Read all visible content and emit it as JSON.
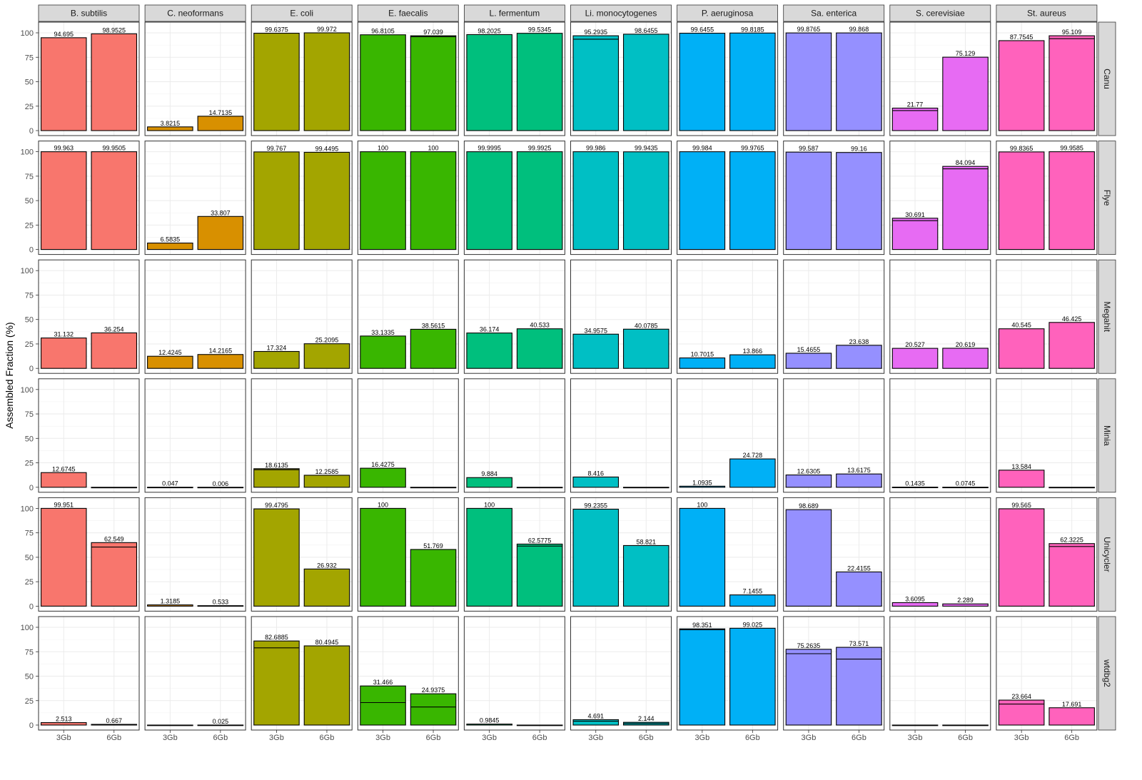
{
  "chart_data": {
    "type": "bar",
    "ylabel": "Assembled Fraction (%)",
    "xlabel": "",
    "ylim": [
      0,
      100
    ],
    "y_ticks": [
      0,
      25,
      50,
      75,
      100
    ],
    "categories": [
      "3Gb",
      "6Gb"
    ],
    "grid": true,
    "species": [
      "B. subtilis",
      "C. neoformans",
      "E. coli",
      "E. faecalis",
      "L. fermentum",
      "Li. monocytogenes",
      "P. aeruginosa",
      "Sa. enterica",
      "S. cerevisiae",
      "St. aureus"
    ],
    "assemblers": [
      "Canu",
      "Flye",
      "Megahit",
      "Minia",
      "Unicycler",
      "wtdbg2"
    ],
    "colors": {
      "B. subtilis": "#F8766D",
      "C. neoformans": "#D89000",
      "E. coli": "#A3A500",
      "E. faecalis": "#39B600",
      "L. fermentum": "#00BF7D",
      "Li. monocytogenes": "#00BFC4",
      "P. aeruginosa": "#00B0F6",
      "Sa. enterica": "#9590FF",
      "S. cerevisiae": "#E76BF3",
      "St. aureus": "#FF62BC"
    },
    "values": {
      "Canu": [
        {
          "labels": [
            "94.695",
            "98.9525"
          ],
          "bars": [
            95,
            99
          ],
          "lines": [
            null,
            null
          ]
        },
        {
          "labels": [
            "3.8215",
            "14.7135"
          ],
          "bars": [
            3.8,
            14.7
          ],
          "lines": [
            null,
            null
          ]
        },
        {
          "labels": [
            "99.6375",
            "99.972"
          ],
          "bars": [
            99.6,
            100
          ],
          "lines": [
            null,
            null
          ]
        },
        {
          "labels": [
            "96.8105",
            "97.039"
          ],
          "bars": [
            98,
            97
          ],
          "lines": [
            null,
            96
          ]
        },
        {
          "labels": [
            "98.2025",
            "99.5345"
          ],
          "bars": [
            98.2,
            99.5
          ],
          "lines": [
            null,
            null
          ]
        },
        {
          "labels": [
            "95.2935",
            "98.6455"
          ],
          "bars": [
            97,
            98.6
          ],
          "lines": [
            93.5,
            null
          ]
        },
        {
          "labels": [
            "99.6455",
            "99.8185"
          ],
          "bars": [
            99.6,
            99.8
          ],
          "lines": [
            null,
            null
          ]
        },
        {
          "labels": [
            "99.8765",
            "99.868"
          ],
          "bars": [
            99.9,
            99.9
          ],
          "lines": [
            null,
            null
          ]
        },
        {
          "labels": [
            "21.77",
            "75.129"
          ],
          "bars": [
            23,
            75.1
          ],
          "lines": [
            20.5,
            null
          ]
        },
        {
          "labels": [
            "87.7545",
            "95.109"
          ],
          "bars": [
            92,
            97
          ],
          "lines": [
            null,
            94
          ]
        }
      ],
      "Flye": [
        {
          "labels": [
            "99.963",
            "99.9505"
          ],
          "bars": [
            100,
            100
          ],
          "lines": [
            null,
            null
          ]
        },
        {
          "labels": [
            "6.5835",
            "33.807"
          ],
          "bars": [
            6.6,
            33.8
          ],
          "lines": [
            null,
            null
          ]
        },
        {
          "labels": [
            "99.767",
            "99.4495"
          ],
          "bars": [
            99.8,
            99.4
          ],
          "lines": [
            null,
            null
          ]
        },
        {
          "labels": [
            "100",
            "100"
          ],
          "bars": [
            100,
            100
          ],
          "lines": [
            null,
            null
          ]
        },
        {
          "labels": [
            "99.9995",
            "99.9925"
          ],
          "bars": [
            100,
            100
          ],
          "lines": [
            null,
            null
          ]
        },
        {
          "labels": [
            "99.986",
            "99.9435"
          ],
          "bars": [
            100,
            99.9
          ],
          "lines": [
            null,
            null
          ]
        },
        {
          "labels": [
            "99.984",
            "99.9765"
          ],
          "bars": [
            100,
            100
          ],
          "lines": [
            null,
            null
          ]
        },
        {
          "labels": [
            "99.587",
            "99.16"
          ],
          "bars": [
            99.6,
            99.2
          ],
          "lines": [
            null,
            null
          ]
        },
        {
          "labels": [
            "30.691",
            "84.094"
          ],
          "bars": [
            32,
            85
          ],
          "lines": [
            29.5,
            82.5
          ]
        },
        {
          "labels": [
            "99.8365",
            "99.9585"
          ],
          "bars": [
            99.8,
            100
          ],
          "lines": [
            null,
            null
          ]
        }
      ],
      "Megahit": [
        {
          "labels": [
            "31.132",
            "36.254"
          ],
          "bars": [
            31.1,
            36.3
          ],
          "lines": [
            null,
            null
          ]
        },
        {
          "labels": [
            "12.4245",
            "14.2165"
          ],
          "bars": [
            12.4,
            14.2
          ],
          "lines": [
            null,
            null
          ]
        },
        {
          "labels": [
            "17.324",
            "25.2095"
          ],
          "bars": [
            17.3,
            25.2
          ],
          "lines": [
            null,
            null
          ]
        },
        {
          "labels": [
            "33.1335",
            "38.5615"
          ],
          "bars": [
            33.1,
            40
          ],
          "lines": [
            null,
            null
          ]
        },
        {
          "labels": [
            "36.174",
            "40.533"
          ],
          "bars": [
            36.2,
            40.5
          ],
          "lines": [
            null,
            null
          ]
        },
        {
          "labels": [
            "34.9575",
            "40.0785"
          ],
          "bars": [
            35,
            40.1
          ],
          "lines": [
            null,
            null
          ]
        },
        {
          "labels": [
            "10.7015",
            "13.866"
          ],
          "bars": [
            10.7,
            13.9
          ],
          "lines": [
            null,
            null
          ]
        },
        {
          "labels": [
            "15.4655",
            "23.638"
          ],
          "bars": [
            15.5,
            23.6
          ],
          "lines": [
            null,
            null
          ]
        },
        {
          "labels": [
            "20.527",
            "20.619"
          ],
          "bars": [
            20.5,
            20.6
          ],
          "lines": [
            null,
            null
          ]
        },
        {
          "labels": [
            "40.545",
            "46.425"
          ],
          "bars": [
            40.5,
            47
          ],
          "lines": [
            null,
            null
          ]
        }
      ],
      "Minia": [
        {
          "labels": [
            "12.6745",
            ""
          ],
          "bars": [
            15,
            0
          ],
          "lines": [
            null,
            null
          ]
        },
        {
          "labels": [
            "0.047",
            "0.006"
          ],
          "bars": [
            0.05,
            0.01
          ],
          "lines": [
            null,
            null
          ]
        },
        {
          "labels": [
            "18.6135",
            "12.2585"
          ],
          "bars": [
            19,
            12.3
          ],
          "lines": [
            18,
            null
          ]
        },
        {
          "labels": [
            "16.4275",
            ""
          ],
          "bars": [
            19.5,
            0
          ],
          "lines": [
            null,
            null
          ]
        },
        {
          "labels": [
            "9.884",
            ""
          ],
          "bars": [
            9.9,
            0
          ],
          "lines": [
            null,
            null
          ]
        },
        {
          "labels": [
            "8.416",
            ""
          ],
          "bars": [
            10.5,
            0
          ],
          "lines": [
            null,
            null
          ]
        },
        {
          "labels": [
            "1.0935",
            "24.728"
          ],
          "bars": [
            1.1,
            29
          ],
          "lines": [
            null,
            null
          ]
        },
        {
          "labels": [
            "12.6305",
            "13.6175"
          ],
          "bars": [
            12.6,
            13.6
          ],
          "lines": [
            null,
            null
          ]
        },
        {
          "labels": [
            "0.1435",
            "0.0745"
          ],
          "bars": [
            0.14,
            0.07
          ],
          "lines": [
            null,
            null
          ]
        },
        {
          "labels": [
            "13.584",
            ""
          ],
          "bars": [
            17.5,
            0
          ],
          "lines": [
            null,
            null
          ]
        }
      ],
      "Unicycler": [
        {
          "labels": [
            "99.951",
            "62.549"
          ],
          "bars": [
            100,
            65
          ],
          "lines": [
            null,
            60.5
          ]
        },
        {
          "labels": [
            "1.3185",
            "0.533"
          ],
          "bars": [
            1.3,
            0.5
          ],
          "lines": [
            null,
            null
          ]
        },
        {
          "labels": [
            "99.4795",
            "26.932"
          ],
          "bars": [
            99.5,
            38
          ],
          "lines": [
            null,
            null
          ]
        },
        {
          "labels": [
            "100",
            "51.769"
          ],
          "bars": [
            100,
            58
          ],
          "lines": [
            null,
            null
          ]
        },
        {
          "labels": [
            "100",
            "62.5775"
          ],
          "bars": [
            100,
            63.5
          ],
          "lines": [
            null,
            61.5
          ]
        },
        {
          "labels": [
            "99.2355",
            "58.821"
          ],
          "bars": [
            99.2,
            62
          ],
          "lines": [
            null,
            null
          ]
        },
        {
          "labels": [
            "100",
            "7.1455"
          ],
          "bars": [
            100,
            11.5
          ],
          "lines": [
            null,
            null
          ]
        },
        {
          "labels": [
            "98.689",
            "22.4155"
          ],
          "bars": [
            98.7,
            35
          ],
          "lines": [
            null,
            null
          ]
        },
        {
          "labels": [
            "3.6095",
            "2.289"
          ],
          "bars": [
            3.6,
            2.3
          ],
          "lines": [
            null,
            null
          ]
        },
        {
          "labels": [
            "99.565",
            "62.3225"
          ],
          "bars": [
            99.6,
            64
          ],
          "lines": [
            null,
            61
          ]
        }
      ],
      "wtdbg2": [
        {
          "labels": [
            "2.513",
            "0.667"
          ],
          "bars": [
            2.5,
            0.7
          ],
          "lines": [
            null,
            null
          ]
        },
        {
          "labels": [
            "",
            "0.025"
          ],
          "bars": [
            0,
            0.03
          ],
          "lines": [
            null,
            null
          ]
        },
        {
          "labels": [
            "82.6885",
            "80.4945"
          ],
          "bars": [
            86,
            81
          ],
          "lines": [
            79,
            null
          ]
        },
        {
          "labels": [
            "31.466",
            "24.9375"
          ],
          "bars": [
            40,
            32
          ],
          "lines": [
            23,
            18.5
          ]
        },
        {
          "labels": [
            "0.9845",
            ""
          ],
          "bars": [
            1,
            0
          ],
          "lines": [
            null,
            null
          ]
        },
        {
          "labels": [
            "4.691",
            "2.144"
          ],
          "bars": [
            5.5,
            2.8
          ],
          "lines": [
            4,
            1.5
          ]
        },
        {
          "labels": [
            "98.351",
            "99.025"
          ],
          "bars": [
            98.4,
            99
          ],
          "lines": [
            97.5,
            null
          ]
        },
        {
          "labels": [
            "75.2635",
            "73.571"
          ],
          "bars": [
            77.5,
            79.5
          ],
          "lines": [
            73,
            67.5
          ]
        },
        {
          "labels": [
            "",
            ""
          ],
          "bars": [
            0,
            0
          ],
          "lines": [
            null,
            null
          ]
        },
        {
          "labels": [
            "23.664",
            "17.691"
          ],
          "bars": [
            25.5,
            17.7
          ],
          "lines": [
            21.5,
            null
          ]
        }
      ]
    }
  }
}
